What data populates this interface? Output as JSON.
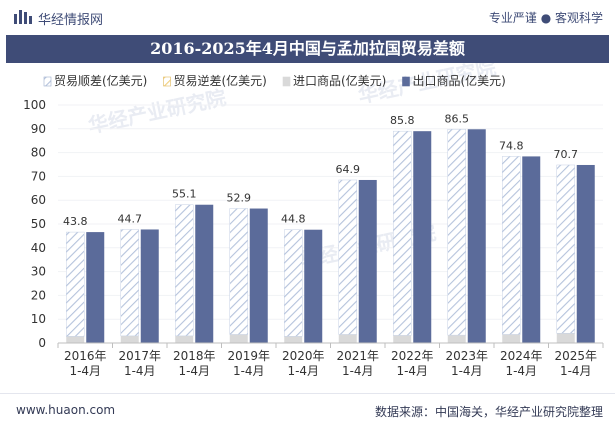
{
  "header": {
    "brand": "华经情报网",
    "slogan": "专业严谨 ● 客观科学"
  },
  "footer": {
    "site": "www.huaon.com",
    "source": "数据来源：中国海关，华经产业研究院整理"
  },
  "watermark": "华经产业研究院",
  "colors": {
    "title_bg": "#3f4c77",
    "export_bar": "#5b6b9a",
    "import_bar": "#d9d9d9",
    "surplus_hatch": "#b5c3dc",
    "deficit_hatch": "#f2cf7c"
  },
  "chart_data": {
    "type": "bar",
    "title": "2016-2025年4月中国与孟加拉国贸易差额",
    "categories": [
      "2016年\n1-4月",
      "2017年\n1-4月",
      "2018年\n1-4月",
      "2019年\n1-4月",
      "2020年\n1-4月",
      "2021年\n1-4月",
      "2022年\n1-4月",
      "2023年\n1-4月",
      "2024年\n1-4月",
      "2025年\n1-4月"
    ],
    "ylim": [
      0,
      100
    ],
    "yticks": [
      0,
      10,
      20,
      30,
      40,
      50,
      60,
      70,
      80,
      90,
      100
    ],
    "legend_position": "top",
    "series": [
      {
        "name": "贸易顺差(亿美元)",
        "values": [
          43.8,
          44.7,
          55.1,
          52.9,
          44.8,
          64.9,
          85.8,
          86.5,
          74.8,
          70.7
        ]
      },
      {
        "name": "贸易逆差(亿美元)",
        "values": [
          0,
          0,
          0,
          0,
          0,
          0,
          0,
          0,
          0,
          0
        ]
      },
      {
        "name": "进口商品(亿美元)",
        "values": [
          2.8,
          3.0,
          3.0,
          3.6,
          2.8,
          3.6,
          3.2,
          3.3,
          3.6,
          4.1
        ]
      },
      {
        "name": "出口商品(亿美元)",
        "values": [
          46.6,
          47.7,
          58.1,
          56.5,
          47.6,
          68.5,
          89.0,
          89.8,
          78.4,
          74.8
        ]
      }
    ]
  }
}
